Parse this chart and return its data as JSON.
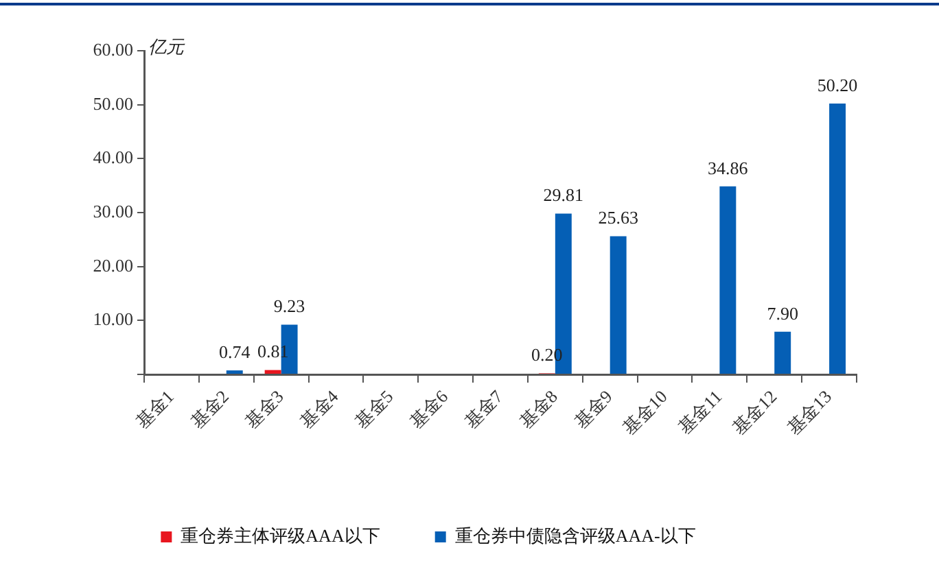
{
  "chart_data": {
    "type": "bar",
    "ylabel": "亿元",
    "categories": [
      "基金1",
      "基金2",
      "基金3",
      "基金4",
      "基金5",
      "基金6",
      "基金7",
      "基金8",
      "基金9",
      "基金10",
      "基金11",
      "基金12",
      "基金13"
    ],
    "series": [
      {
        "name": "重仓券主体评级AAA以下",
        "color": "#e8161f",
        "values": [
          null,
          null,
          0.81,
          null,
          null,
          null,
          null,
          0.2,
          null,
          null,
          null,
          null,
          null
        ],
        "value_labels": [
          null,
          null,
          "0.81",
          null,
          null,
          null,
          null,
          "0.20",
          null,
          null,
          null,
          null,
          null
        ]
      },
      {
        "name": "重仓券中债隐含评级AAA-以下",
        "color": "#055fb5",
        "values": [
          null,
          0.74,
          9.23,
          null,
          null,
          null,
          null,
          29.81,
          25.63,
          null,
          34.86,
          7.9,
          50.2
        ],
        "value_labels": [
          null,
          "0.74",
          "9.23",
          null,
          null,
          null,
          null,
          "29.81",
          "25.63",
          null,
          "34.86",
          "7.90",
          "50.20"
        ]
      }
    ],
    "ylim": [
      0,
      60
    ],
    "yticks": [
      {
        "value": 0,
        "label": null
      },
      {
        "value": 10,
        "label": "10.00"
      },
      {
        "value": 20,
        "label": "20.00"
      },
      {
        "value": 30,
        "label": "30.00"
      },
      {
        "value": 40,
        "label": "40.00"
      },
      {
        "value": 50,
        "label": "50.00"
      },
      {
        "value": 60,
        "label": "60.00"
      }
    ],
    "grid": false,
    "legend": "bottom"
  }
}
